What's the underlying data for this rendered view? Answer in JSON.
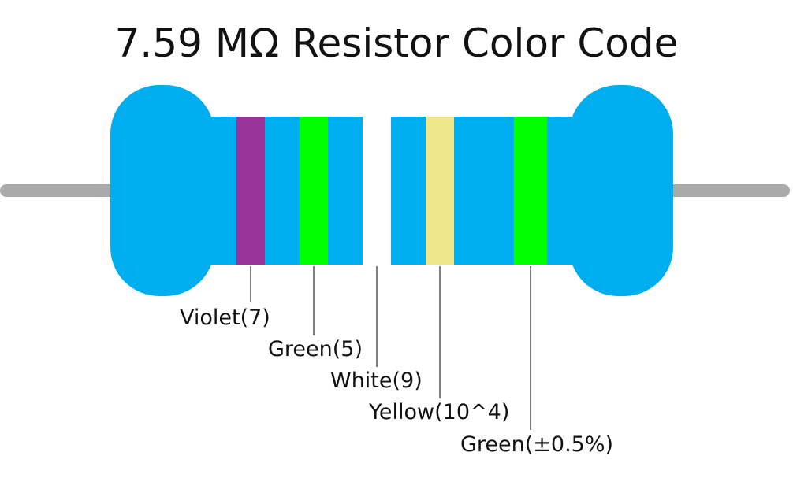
{
  "title": "7.59 MΩ Resistor Color Code",
  "colors": {
    "body": "#00aeef",
    "lead": "#aaaaaa",
    "line": "#000000"
  },
  "bands": [
    {
      "color_name": "violet",
      "hex": "#993399",
      "label": "Violet(7)"
    },
    {
      "color_name": "green",
      "hex": "#00ff00",
      "label": "Green(5)"
    },
    {
      "color_name": "white",
      "hex": "#ffffff",
      "label": "White(9)"
    },
    {
      "color_name": "yellow",
      "hex": "#f0e68c",
      "label": "Yellow(10^4)"
    },
    {
      "color_name": "green",
      "hex": "#00ff00",
      "label": "Green(±0.5%)"
    }
  ]
}
